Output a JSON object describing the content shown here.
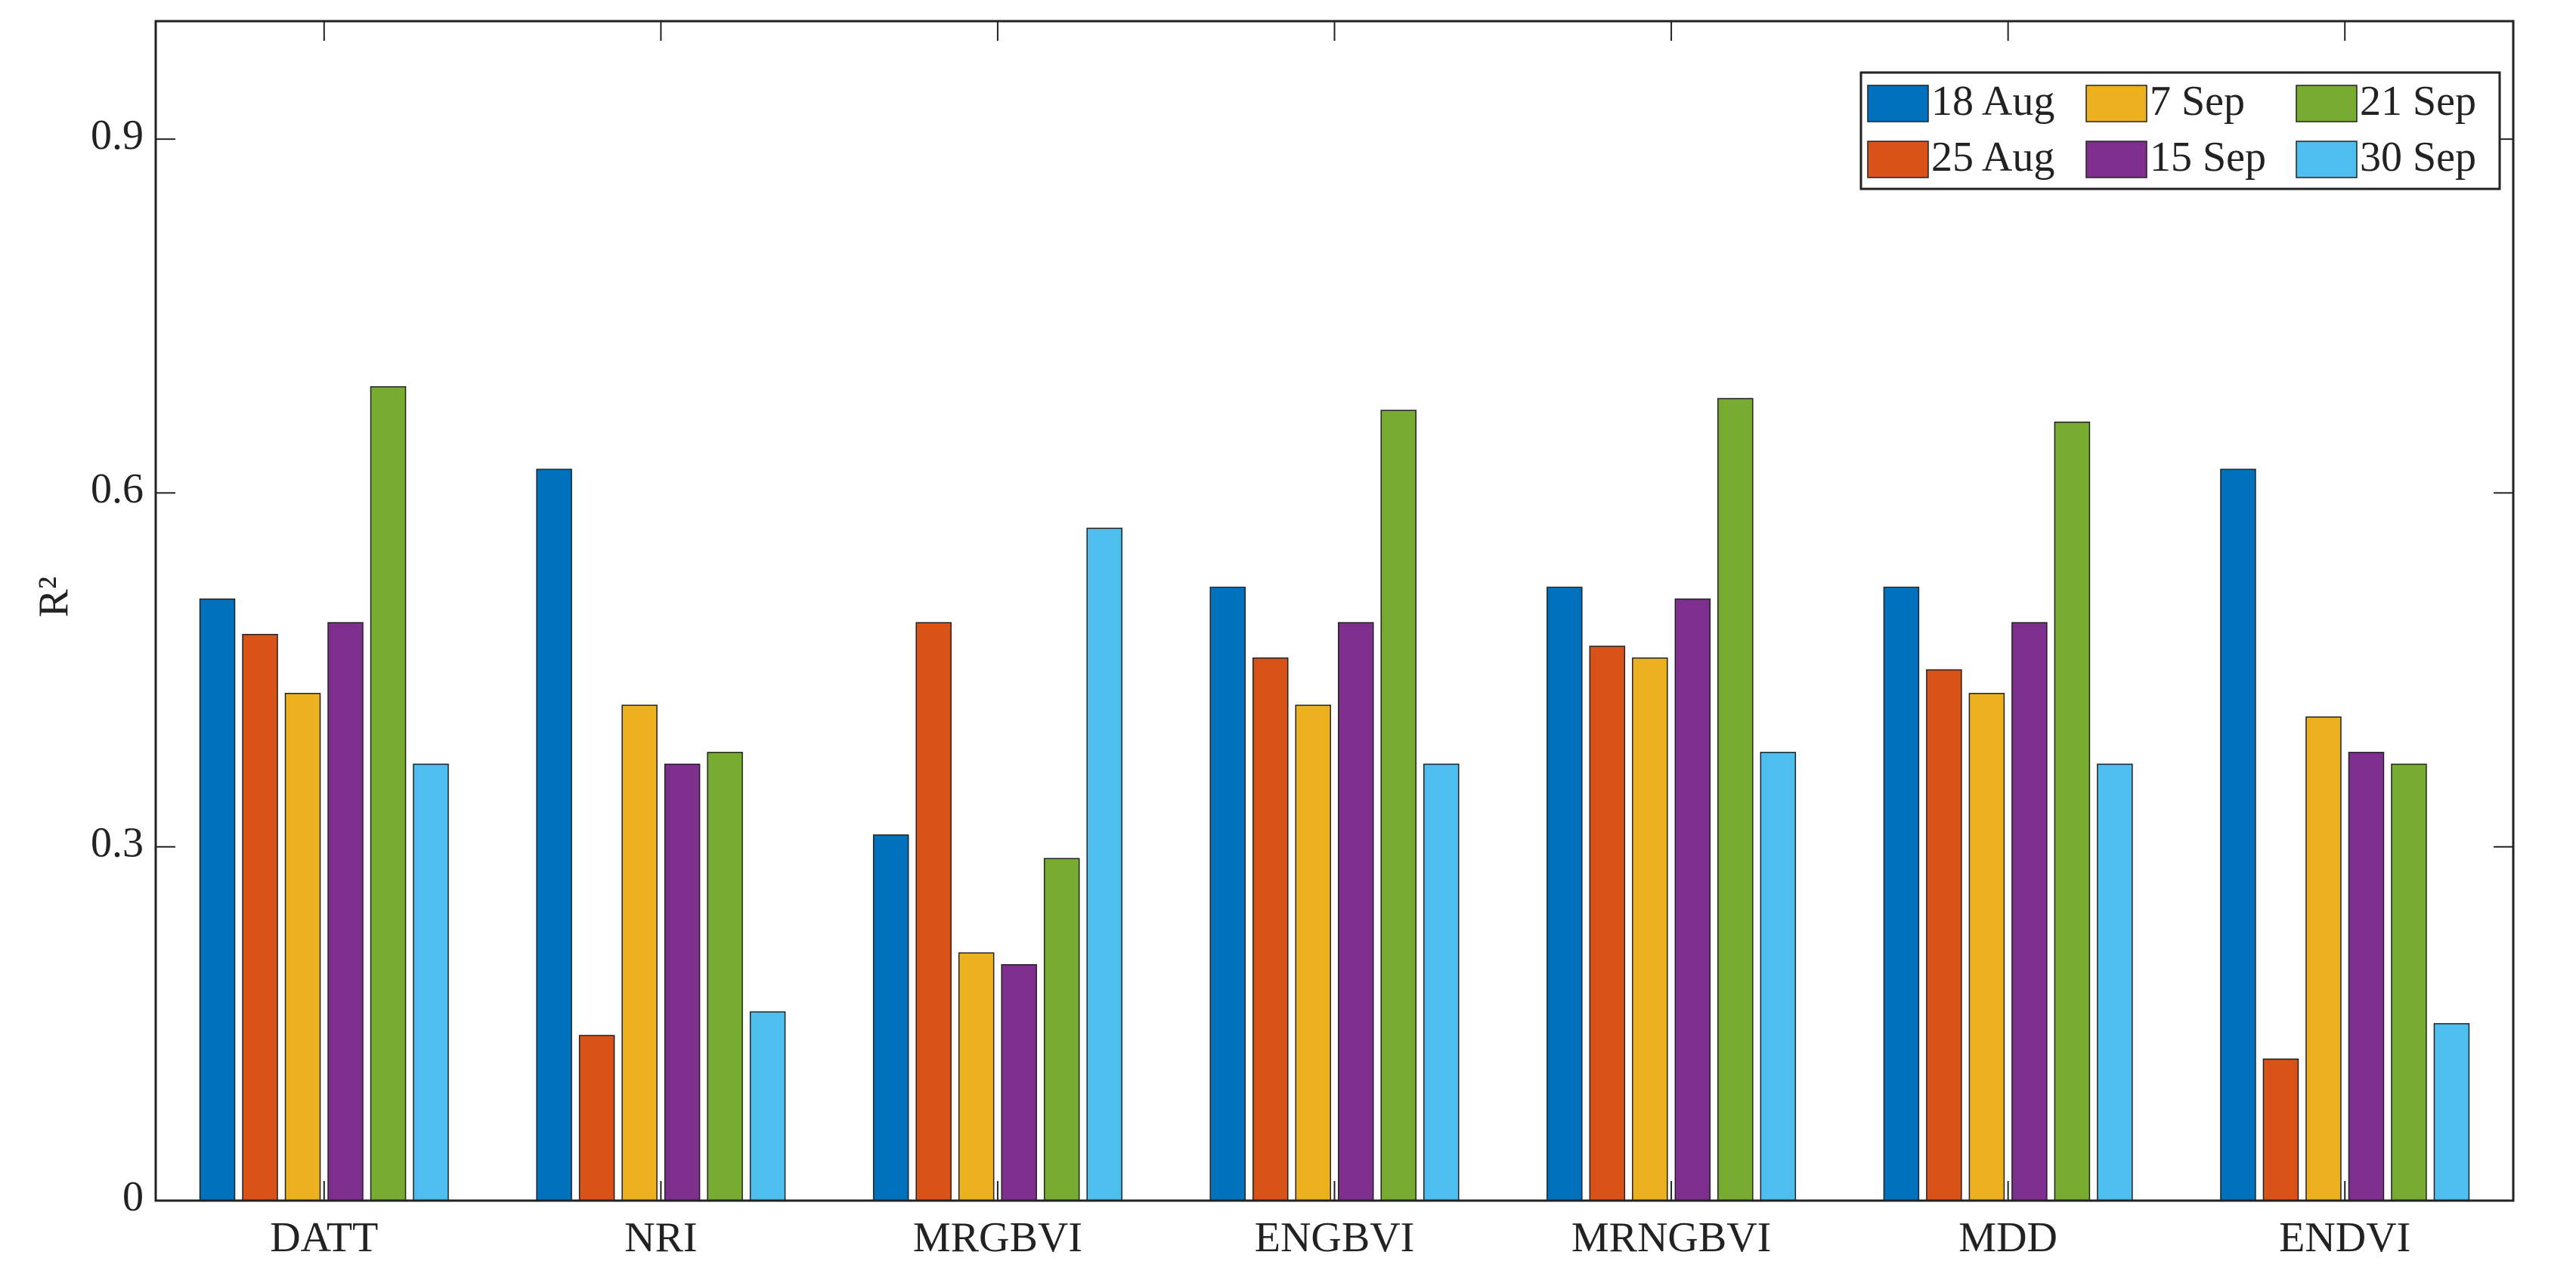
{
  "chart_data": {
    "type": "bar",
    "y_label": "R²",
    "categories": [
      "DATT",
      "NRI",
      "MRGBVI",
      "ENGBVI",
      "MRNGBVI",
      "MDD",
      "ENDVI"
    ],
    "series": [
      {
        "name": "18 Aug",
        "color": "#0072bd",
        "values": [
          0.51,
          0.62,
          0.31,
          0.52,
          0.52,
          0.52,
          0.62
        ]
      },
      {
        "name": "25 Aug",
        "color": "#d95319",
        "values": [
          0.48,
          0.14,
          0.49,
          0.46,
          0.47,
          0.45,
          0.12
        ]
      },
      {
        "name": "7 Sep",
        "color": "#edb120",
        "values": [
          0.43,
          0.42,
          0.21,
          0.42,
          0.46,
          0.43,
          0.41
        ]
      },
      {
        "name": "15 Sep",
        "color": "#7e2f8e",
        "values": [
          0.49,
          0.37,
          0.2,
          0.49,
          0.51,
          0.49,
          0.38
        ]
      },
      {
        "name": "21 Sep",
        "color": "#77ac30",
        "values": [
          0.69,
          0.38,
          0.29,
          0.67,
          0.68,
          0.66,
          0.37
        ]
      },
      {
        "name": "30 Sep",
        "color": "#4dbeee",
        "values": [
          0.37,
          0.16,
          0.57,
          0.37,
          0.38,
          0.37,
          0.15
        ]
      }
    ],
    "ylim": [
      0,
      1
    ],
    "yticks": [
      0,
      0.3,
      0.6,
      0.9
    ],
    "grid": false,
    "legend": "upper right"
  }
}
